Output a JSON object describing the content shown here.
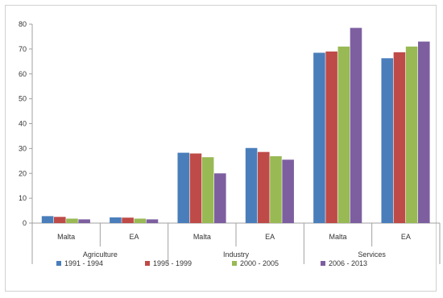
{
  "chart_data": {
    "type": "bar",
    "title": "",
    "xlabel": "",
    "ylabel": "",
    "ylim": [
      0,
      80
    ],
    "yticks": [
      0,
      10,
      20,
      30,
      40,
      50,
      60,
      70,
      80
    ],
    "grid": false,
    "legend_position": "bottom",
    "groups": [
      "Agriculture",
      "Industry",
      "Services"
    ],
    "categories": [
      {
        "label": "Malta",
        "group": "Agriculture"
      },
      {
        "label": "EA",
        "group": "Agriculture"
      },
      {
        "label": "Malta",
        "group": "Industry"
      },
      {
        "label": "EA",
        "group": "Industry"
      },
      {
        "label": "Malta",
        "group": "Services"
      },
      {
        "label": "EA",
        "group": "Services"
      }
    ],
    "series": [
      {
        "name": "1991 - 1994",
        "color": "#4a7ebb",
        "values": [
          2.8,
          2.3,
          28.3,
          30.2,
          68.5,
          66.3
        ]
      },
      {
        "name": "1995 - 1999",
        "color": "#be4b48",
        "values": [
          2.5,
          2.2,
          28.0,
          28.6,
          69.0,
          68.7
        ]
      },
      {
        "name": "2000 - 2005",
        "color": "#98b954",
        "values": [
          1.8,
          1.8,
          26.5,
          26.9,
          71.0,
          71.0
        ]
      },
      {
        "name": "2006 - 2013",
        "color": "#7d5fa0",
        "values": [
          1.5,
          1.5,
          20.0,
          25.5,
          78.5,
          73.0
        ]
      }
    ]
  }
}
